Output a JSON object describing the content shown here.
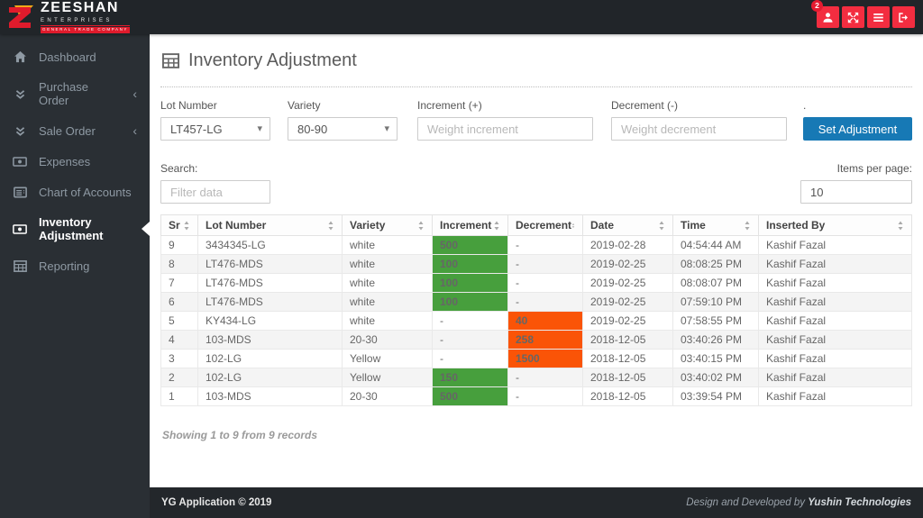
{
  "header": {
    "logo": {
      "title": "ZEESHAN",
      "subtitle": "ENTERPRISES",
      "tagline": "GENERAL TRADE COMPANY"
    },
    "actions": {
      "user_badge": "2"
    }
  },
  "sidebar": {
    "items": [
      {
        "label": "Dashboard",
        "icon": "home",
        "active": false,
        "expandable": false
      },
      {
        "label": "Purchase Order",
        "icon": "double-chevron-down",
        "active": false,
        "expandable": true
      },
      {
        "label": "Sale Order",
        "icon": "double-chevron-down",
        "active": false,
        "expandable": true
      },
      {
        "label": "Expenses",
        "icon": "money",
        "active": false,
        "expandable": false
      },
      {
        "label": "Chart of Accounts",
        "icon": "list",
        "active": false,
        "expandable": false
      },
      {
        "label": "Inventory Adjustment",
        "icon": "money",
        "active": true,
        "expandable": false
      },
      {
        "label": "Reporting",
        "icon": "table",
        "active": false,
        "expandable": false
      }
    ]
  },
  "main": {
    "title": "Inventory Adjustment",
    "form": {
      "lot_number": {
        "label": "Lot Number",
        "value": "LT457-LG"
      },
      "variety": {
        "label": "Variety",
        "value": "80-90"
      },
      "increment": {
        "label": "Increment (+)",
        "placeholder": "Weight increment"
      },
      "decrement": {
        "label": "Decrement (-)",
        "placeholder": "Weight decrement"
      },
      "submit": {
        "dot_label": ".",
        "label": "Set Adjustment"
      }
    },
    "search": {
      "label": "Search:",
      "placeholder": "Filter data"
    },
    "items_per_page": {
      "label": "Items per page:",
      "value": "10"
    },
    "table": {
      "columns": [
        "Sr",
        "Lot Number",
        "Variety",
        "Increment",
        "Decrement",
        "Date",
        "Time",
        "Inserted By"
      ],
      "rows": [
        {
          "sr": "9",
          "lot": "3434345-LG",
          "variety": "white",
          "increment": "500",
          "decrement": "-",
          "date": "2019-02-28",
          "time": "04:54:44 AM",
          "by": "Kashif Fazal"
        },
        {
          "sr": "8",
          "lot": "LT476-MDS",
          "variety": "white",
          "increment": "100",
          "decrement": "-",
          "date": "2019-02-25",
          "time": "08:08:25 PM",
          "by": "Kashif Fazal"
        },
        {
          "sr": "7",
          "lot": "LT476-MDS",
          "variety": "white",
          "increment": "100",
          "decrement": "-",
          "date": "2019-02-25",
          "time": "08:08:07 PM",
          "by": "Kashif Fazal"
        },
        {
          "sr": "6",
          "lot": "LT476-MDS",
          "variety": "white",
          "increment": "100",
          "decrement": "-",
          "date": "2019-02-25",
          "time": "07:59:10 PM",
          "by": "Kashif Fazal"
        },
        {
          "sr": "5",
          "lot": "KY434-LG",
          "variety": "white",
          "increment": "-",
          "decrement": "40",
          "date": "2019-02-25",
          "time": "07:58:55 PM",
          "by": "Kashif Fazal"
        },
        {
          "sr": "4",
          "lot": "103-MDS",
          "variety": "20-30",
          "increment": "-",
          "decrement": "258",
          "date": "2018-12-05",
          "time": "03:40:26 PM",
          "by": "Kashif Fazal"
        },
        {
          "sr": "3",
          "lot": "102-LG",
          "variety": "Yellow",
          "increment": "-",
          "decrement": "1500",
          "date": "2018-12-05",
          "time": "03:40:15 PM",
          "by": "Kashif Fazal"
        },
        {
          "sr": "2",
          "lot": "102-LG",
          "variety": "Yellow",
          "increment": "150",
          "decrement": "-",
          "date": "2018-12-05",
          "time": "03:40:02 PM",
          "by": "Kashif Fazal"
        },
        {
          "sr": "1",
          "lot": "103-MDS",
          "variety": "20-30",
          "increment": "500",
          "decrement": "-",
          "date": "2018-12-05",
          "time": "03:39:54 PM",
          "by": "Kashif Fazal"
        }
      ]
    },
    "summary": "Showing 1 to 9 from 9 records"
  },
  "footer": {
    "left": "YG Application © 2019",
    "right_prefix": "Design and Developed by ",
    "right_brand": "Yushin Technologies"
  },
  "colors": {
    "accent_blue": "#1779b5",
    "green": "#479f3d",
    "orange": "#fa5407",
    "red": "#f32d40"
  }
}
